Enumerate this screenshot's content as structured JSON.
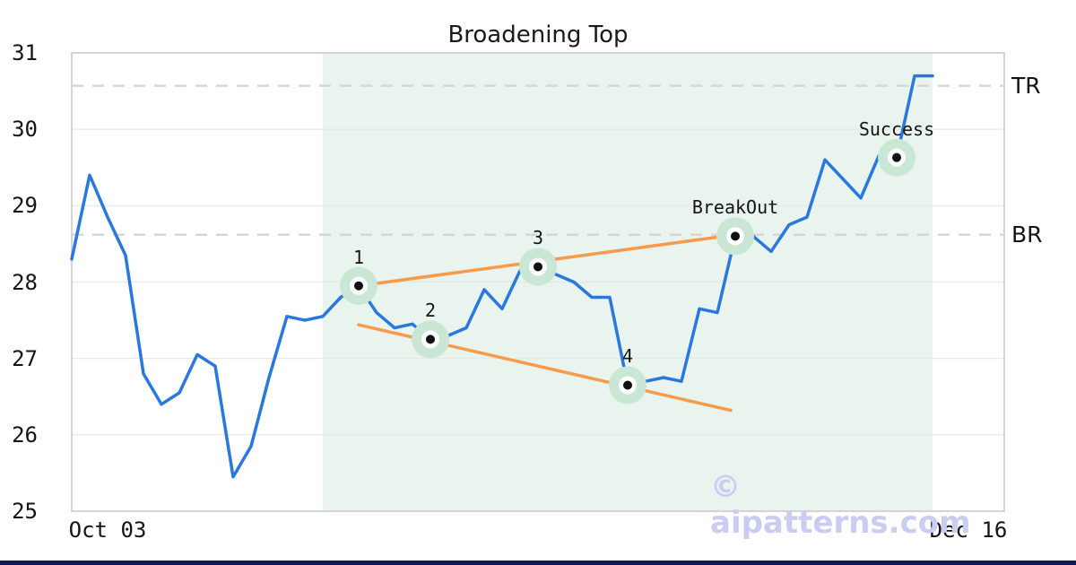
{
  "title": "Broadening Top",
  "watermark": "© aipatterns.com",
  "colors": {
    "price_line": "#2878dd",
    "trendline": "#f79a4b",
    "marker_halo": "#c9e7d4",
    "marker_ring": "#ffffff",
    "marker_dot": "#111111",
    "pattern_shade": "#e9f4ee",
    "dashed_level": "#d6d6d6",
    "gridline": "#e7e7e7",
    "plot_border": "#d4d4d4",
    "text": "#141414",
    "watermark": "#c9cdf2",
    "bottom_bar": "#101a5e"
  },
  "y_axis": {
    "ticks": [
      31,
      30,
      29,
      28,
      27,
      26,
      25
    ]
  },
  "x_axis": {
    "ticks": [
      {
        "label": "Oct 03",
        "index": 2
      },
      {
        "label": "Dec 16",
        "index": 50
      }
    ]
  },
  "chart_data": {
    "type": "line",
    "title": "Broadening Top",
    "xlabel": "",
    "ylabel": "",
    "ylim": [
      25,
      31
    ],
    "grid": "horizontal",
    "x": "trading days, one point per day, Oct 03 through Dec 16",
    "series": [
      {
        "name": "price",
        "values": [
          28.3,
          29.4,
          28.85,
          28.35,
          26.8,
          26.4,
          26.55,
          27.05,
          26.9,
          25.45,
          25.85,
          26.75,
          27.55,
          27.5,
          27.55,
          27.8,
          27.95,
          27.6,
          27.4,
          27.45,
          27.25,
          27.3,
          27.4,
          27.9,
          27.65,
          28.15,
          28.2,
          28.1,
          28.0,
          27.8,
          27.8,
          26.65,
          26.7,
          26.75,
          26.7,
          27.65,
          27.6,
          28.6,
          28.6,
          28.4,
          28.75,
          28.85,
          29.6,
          29.35,
          29.1,
          29.65,
          29.63,
          30.7,
          30.7
        ]
      }
    ],
    "levels": [
      {
        "label": "TR",
        "value": 30.57
      },
      {
        "label": "BR",
        "value": 28.62
      }
    ],
    "trendlines": [
      {
        "name": "upper",
        "from": {
          "index": 16,
          "value": 27.95
        },
        "to": {
          "index": 37,
          "value": 28.62
        }
      },
      {
        "name": "lower",
        "from": {
          "index": 16,
          "value": 27.44
        },
        "to": {
          "index": 36.75,
          "value": 26.32
        }
      }
    ],
    "shaded_region": {
      "from_index": 14,
      "to_index": 48
    },
    "annotations": [
      {
        "label": "1",
        "index": 16,
        "value": 27.95
      },
      {
        "label": "2",
        "index": 20,
        "value": 27.25
      },
      {
        "label": "3",
        "index": 26,
        "value": 28.2
      },
      {
        "label": "4",
        "index": 31,
        "value": 26.65
      },
      {
        "label": "BreakOut",
        "index": 37,
        "value": 28.6
      },
      {
        "label": "Success",
        "index": 46,
        "value": 29.63
      }
    ]
  }
}
